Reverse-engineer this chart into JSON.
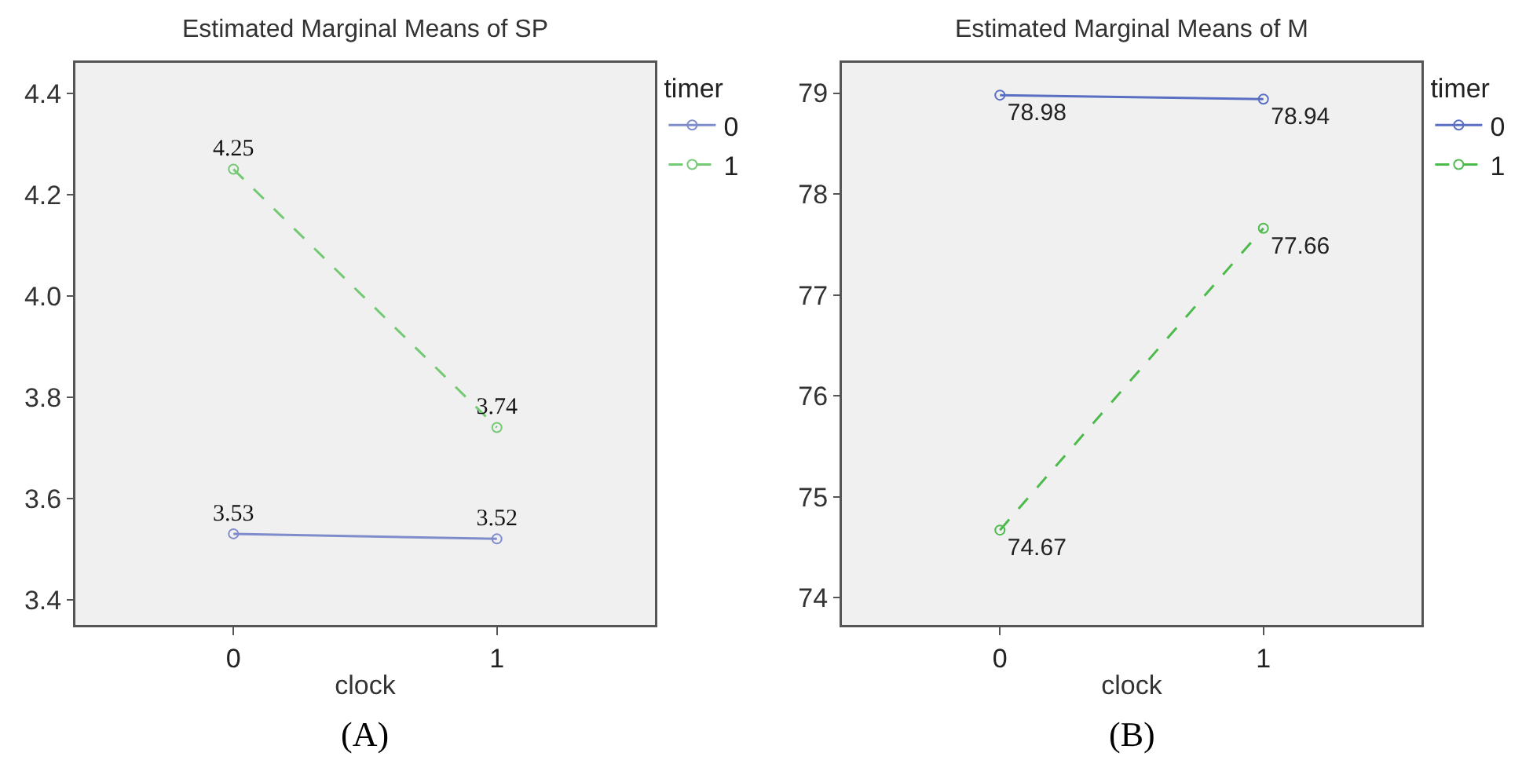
{
  "chart_data": [
    {
      "type": "line",
      "title": "Estimated Marginal Means of SP",
      "xlabel": "clock",
      "legend_title": "timer",
      "annotations": [
        "(A)"
      ],
      "categories": [
        "0",
        "1"
      ],
      "series": [
        {
          "name": "0",
          "color": "#7f8ccc",
          "values": [
            3.53,
            3.52
          ],
          "line_style": "solid"
        },
        {
          "name": "1",
          "color": "#74c974",
          "values": [
            4.25,
            3.74
          ],
          "line_style": "dashed"
        }
      ],
      "ylim": [
        3.35,
        4.46
      ],
      "yticks": [
        3.4,
        3.6,
        3.8,
        {
          "value": 4,
          "label": "4.0"
        },
        4.2,
        4.4
      ],
      "data_labels": true,
      "legend": "top right",
      "marker": "circle"
    },
    {
      "type": "line",
      "title": "Estimated Marginal Means of M",
      "xlabel": "clock",
      "legend_title": "timer",
      "annotations": [
        "(B)"
      ],
      "categories": [
        "0",
        "1"
      ],
      "series": [
        {
          "name": "0",
          "color": "#5a6ec4",
          "values": [
            78.98,
            78.94
          ],
          "line_style": "solid"
        },
        {
          "name": "1",
          "color": "#4cbb4c",
          "values": [
            74.67,
            77.66
          ],
          "line_style": "dashed"
        }
      ],
      "ylim": [
        73.73,
        79.3
      ],
      "yticks": [
        74,
        75,
        76,
        77,
        78,
        79
      ],
      "data_labels": true,
      "legend": "top right",
      "marker": "circle"
    }
  ]
}
